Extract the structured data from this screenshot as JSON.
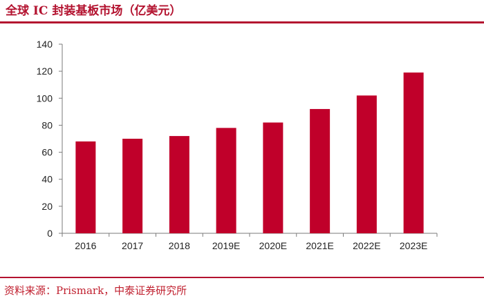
{
  "title": "全球 IC 封装基板市场（亿美元）",
  "source": "资料来源：Prismark，中泰证券研究所",
  "colors": {
    "accent": "#b3122f",
    "bar": "#c0002a"
  },
  "chart_data": {
    "type": "bar",
    "categories": [
      "2016",
      "2017",
      "2018",
      "2019E",
      "2020E",
      "2021E",
      "2022E",
      "2023E"
    ],
    "values": [
      68,
      70,
      72,
      78,
      82,
      92,
      102,
      119
    ],
    "ylim": [
      0,
      140
    ],
    "yticks": [
      0,
      20,
      40,
      60,
      80,
      100,
      120,
      140
    ],
    "grid": false,
    "legend": "none"
  }
}
